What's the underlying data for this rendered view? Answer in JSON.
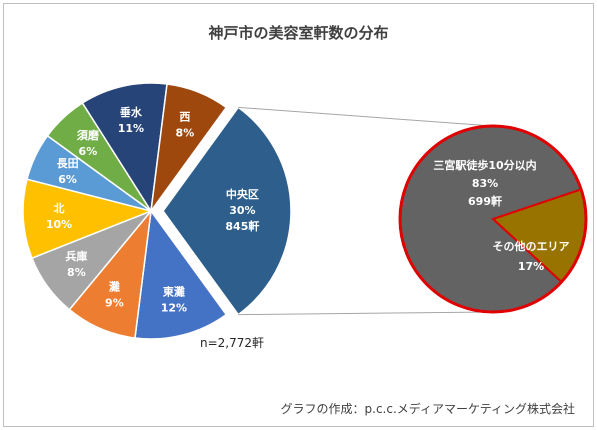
{
  "chart_data": {
    "type": "pie",
    "title": "神戸市の美容室軒数の分布",
    "total_note": "n=2,772軒",
    "slices": [
      {
        "label": "中央区",
        "percent": "30%",
        "value": 30,
        "count": "845軒",
        "color": "#2e5f8c",
        "label_color": "#ffffff",
        "exploded": true
      },
      {
        "label": "東灘",
        "percent": "12%",
        "value": 12,
        "color": "#4472c4",
        "label_color": "#ffffff"
      },
      {
        "label": "灘",
        "percent": "9%",
        "value": 9,
        "color": "#ed7d31",
        "label_color": "#ffffff"
      },
      {
        "label": "兵庫",
        "percent": "8%",
        "value": 8,
        "color": "#a5a5a5",
        "label_color": "#ffffff"
      },
      {
        "label": "北",
        "percent": "10%",
        "value": 10,
        "color": "#ffc000",
        "label_color": "#ffffff"
      },
      {
        "label": "長田",
        "percent": "6%",
        "value": 6,
        "color": "#5b9bd5",
        "label_color": "#ffffff"
      },
      {
        "label": "須磨",
        "percent": "6%",
        "value": 6,
        "color": "#70ad47",
        "label_color": "#ffffff"
      },
      {
        "label": "垂水",
        "percent": "11%",
        "value": 11,
        "color": "#264478",
        "label_color": "#ffffff"
      },
      {
        "label": "西",
        "percent": "8%",
        "value": 8,
        "color": "#9e480e",
        "label_color": "#ffffff"
      }
    ],
    "breakdown_of": "中央区",
    "breakdown": [
      {
        "label": "三宮駅徒歩10分以内",
        "percent": "83%",
        "value": 83,
        "count": "699軒",
        "color": "#636363",
        "label_color": "#ffffff"
      },
      {
        "label": "その他のエリア",
        "percent": "17%",
        "value": 17,
        "color": "#997300",
        "label_color": "#ffffff"
      }
    ],
    "breakdown_border_color": "#e00000"
  },
  "credit": "グラフの作成：p.c.c.メディアマーケティング株式会社"
}
